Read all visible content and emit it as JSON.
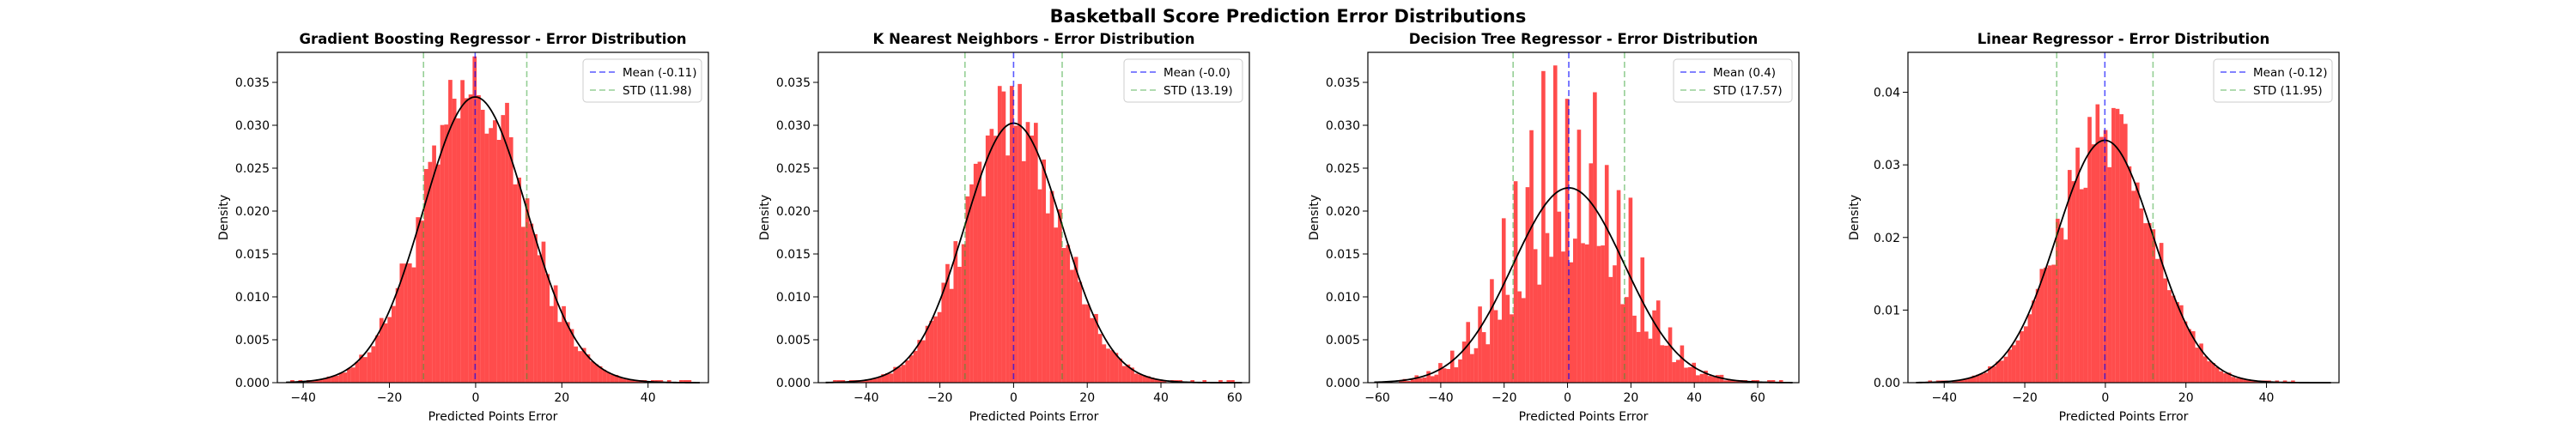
{
  "figure": {
    "suptitle": "Basketball Score Prediction Error Distributions",
    "colors": {
      "bars": "#ff0000",
      "mean_line": "#0000ff",
      "std_line": "#2ca02c",
      "normal_curve": "#000000"
    }
  },
  "chart_data": [
    {
      "type": "histogram",
      "title": "Gradient Boosting Regressor - Error Distribution",
      "xlabel": "Predicted Points Error",
      "ylabel": "Density",
      "xlim": [
        -46,
        54
      ],
      "ylim": [
        0,
        0.0385
      ],
      "xticks": [
        -40,
        -20,
        0,
        20,
        40
      ],
      "yticks": [
        0.0,
        0.005,
        0.01,
        0.015,
        0.02,
        0.025,
        0.03,
        0.035
      ],
      "ytick_labels": [
        "0.000",
        "0.005",
        "0.010",
        "0.015",
        "0.020",
        "0.025",
        "0.030",
        "0.035"
      ],
      "range": [
        -43,
        51
      ],
      "bins": 100,
      "mean": -0.11,
      "std": 11.98,
      "legend": {
        "position": "upper right",
        "mean_label": "Mean (-0.11)",
        "std_label": "STD (11.98)"
      },
      "grid": false
    },
    {
      "type": "histogram",
      "title": "K Nearest Neighbors - Error Distribution",
      "xlabel": "Predicted Points Error",
      "ylabel": "Density",
      "xlim": [
        -53,
        64
      ],
      "ylim": [
        0,
        0.0385
      ],
      "xticks": [
        -40,
        -20,
        0,
        20,
        40,
        60
      ],
      "yticks": [
        0.0,
        0.005,
        0.01,
        0.015,
        0.02,
        0.025,
        0.03,
        0.035
      ],
      "ytick_labels": [
        "0.000",
        "0.005",
        "0.010",
        "0.015",
        "0.020",
        "0.025",
        "0.030",
        "0.035"
      ],
      "range": [
        -49,
        60
      ],
      "bins": 100,
      "mean": -0.0,
      "std": 13.19,
      "legend": {
        "position": "upper right",
        "mean_label": "Mean (-0.0)",
        "std_label": "STD (13.19)"
      },
      "grid": false
    },
    {
      "type": "histogram",
      "title": "Decision Tree Regressor - Error Distribution",
      "xlabel": "Predicted Points Error",
      "ylabel": "Density",
      "xlim": [
        -63,
        73
      ],
      "ylim": [
        0,
        0.0385
      ],
      "xticks": [
        -60,
        -40,
        -20,
        0,
        20,
        40,
        60
      ],
      "yticks": [
        0.0,
        0.005,
        0.01,
        0.015,
        0.02,
        0.025,
        0.03,
        0.035
      ],
      "ytick_labels": [
        "0.000",
        "0.005",
        "0.010",
        "0.015",
        "0.020",
        "0.025",
        "0.030",
        "0.035"
      ],
      "range": [
        -57,
        68
      ],
      "bins": 100,
      "mean": 0.4,
      "std": 17.57,
      "spiky": true,
      "legend": {
        "position": "upper right",
        "mean_label": "Mean (0.4)",
        "std_label": "STD (17.57)"
      },
      "grid": false
    },
    {
      "type": "histogram",
      "title": "Linear Regressor - Error Distribution",
      "xlabel": "Predicted Points Error",
      "ylabel": "Density",
      "xlim": [
        -49,
        58
      ],
      "ylim": [
        0,
        0.0455
      ],
      "xticks": [
        -40,
        -20,
        0,
        20,
        40
      ],
      "yticks": [
        0.0,
        0.01,
        0.02,
        0.03,
        0.04
      ],
      "ytick_labels": [
        "0.00",
        "0.01",
        "0.02",
        "0.03",
        "0.04"
      ],
      "range": [
        -45,
        54
      ],
      "bins": 100,
      "mean": -0.12,
      "std": 11.95,
      "legend": {
        "position": "upper right",
        "mean_label": "Mean (-0.12)",
        "std_label": "STD (11.95)"
      },
      "grid": false
    }
  ]
}
